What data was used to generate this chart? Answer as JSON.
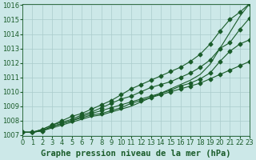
{
  "title": "Graphe pression niveau de la mer (hPa)",
  "bg_color": "#cce8e8",
  "grid_color": "#aacccc",
  "line_color": "#1a5c2a",
  "xlim": [
    0,
    23
  ],
  "ylim": [
    1007,
    1016
  ],
  "yticks": [
    1007,
    1008,
    1009,
    1010,
    1011,
    1012,
    1013,
    1014,
    1015,
    1016
  ],
  "xticks": [
    0,
    1,
    2,
    3,
    4,
    5,
    6,
    7,
    8,
    9,
    10,
    11,
    12,
    13,
    14,
    15,
    16,
    17,
    18,
    19,
    20,
    21,
    22,
    23
  ],
  "lines": [
    [
      1007.2,
      1007.2,
      1007.3,
      1007.6,
      1007.8,
      1008.0,
      1008.2,
      1008.4,
      1008.5,
      1008.7,
      1008.9,
      1009.2,
      1009.4,
      1009.6,
      1009.8,
      1010.0,
      1010.2,
      1010.4,
      1010.6,
      1010.9,
      1011.2,
      1011.5,
      1011.8,
      1012.1
    ],
    [
      1007.2,
      1007.2,
      1007.3,
      1007.6,
      1007.8,
      1008.0,
      1008.3,
      1008.5,
      1008.7,
      1008.9,
      1009.1,
      1009.3,
      1009.5,
      1009.7,
      1009.9,
      1010.1,
      1010.4,
      1010.6,
      1010.9,
      1011.3,
      1012.1,
      1012.8,
      1013.3,
      1013.6
    ],
    [
      1007.2,
      1007.2,
      1007.4,
      1007.7,
      1007.9,
      1008.1,
      1008.4,
      1008.6,
      1008.9,
      1009.2,
      1009.5,
      1009.7,
      1010.0,
      1010.3,
      1010.5,
      1010.7,
      1011.0,
      1011.3,
      1011.7,
      1012.2,
      1013.0,
      1013.4,
      1014.3,
      1015.1
    ],
    [
      1007.2,
      1007.2,
      1007.4,
      1007.7,
      1008.0,
      1008.3,
      1008.5,
      1008.8,
      1009.1,
      1009.4,
      1009.8,
      1010.2,
      1010.5,
      1010.8,
      1011.1,
      1011.4,
      1011.7,
      1012.1,
      1012.6,
      1013.3,
      1014.2,
      1015.0,
      1015.5,
      1016.1
    ]
  ],
  "no_marker_line": [
    1007.2,
    1007.2,
    1007.3,
    1007.5,
    1007.7,
    1007.9,
    1008.1,
    1008.3,
    1008.4,
    1008.6,
    1008.8,
    1009.0,
    1009.3,
    1009.6,
    1009.9,
    1010.2,
    1010.5,
    1010.8,
    1011.2,
    1011.9,
    1013.0,
    1014.1,
    1015.2,
    1016.1
  ],
  "marker": "D",
  "markersize": 2.5,
  "linewidth": 0.8,
  "title_fontsize": 7.5,
  "tick_fontsize": 6
}
